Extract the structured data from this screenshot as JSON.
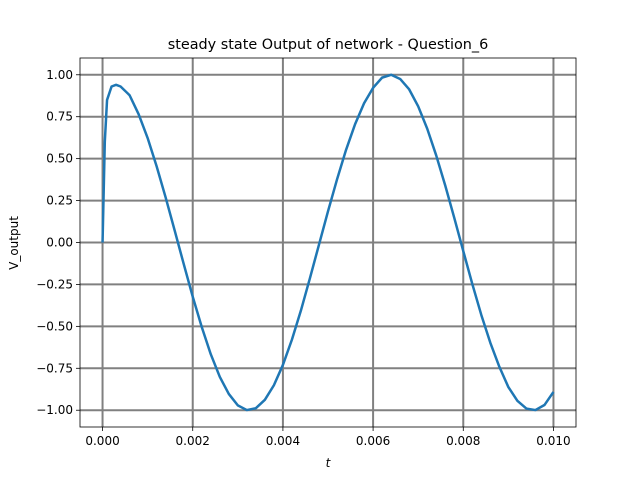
{
  "chart_data": {
    "type": "line",
    "title": "steady state Output of network - Question_6",
    "xlabel": "t",
    "ylabel": "V_output",
    "x": [
      0,
      5e-05,
      0.0001,
      0.0002,
      0.0003,
      0.0004,
      0.0006,
      0.0008,
      0.001,
      0.0012,
      0.0014,
      0.0016,
      0.0018,
      0.002,
      0.0022,
      0.0024,
      0.0026,
      0.0028,
      0.003,
      0.0032,
      0.0034,
      0.0036,
      0.0038,
      0.004,
      0.0042,
      0.0044,
      0.0046,
      0.0048,
      0.005,
      0.0052,
      0.0054,
      0.0056,
      0.0058,
      0.006,
      0.0062,
      0.0064,
      0.0066,
      0.0068,
      0.007,
      0.0072,
      0.0074,
      0.0076,
      0.0078,
      0.008,
      0.0082,
      0.0084,
      0.0086,
      0.0088,
      0.009,
      0.0092,
      0.0094,
      0.0096,
      0.0098,
      0.01
    ],
    "series": [
      {
        "color": "#1f77b4",
        "values": [
          0,
          0.6,
          0.85,
          0.93,
          0.94,
          0.93,
          0.878,
          0.765,
          0.623,
          0.454,
          0.268,
          0.071,
          -0.128,
          -0.323,
          -0.504,
          -0.666,
          -0.801,
          -0.903,
          -0.971,
          -0.999,
          -0.988,
          -0.938,
          -0.851,
          -0.73,
          -0.579,
          -0.405,
          -0.212,
          -0.013,
          0.186,
          0.376,
          0.552,
          0.705,
          0.83,
          0.922,
          0.983,
          1.0,
          0.975,
          0.913,
          0.812,
          0.679,
          0.519,
          0.34,
          0.147,
          -0.051,
          -0.247,
          -0.432,
          -0.598,
          -0.741,
          -0.862,
          -0.944,
          -0.99,
          -0.999,
          -0.969,
          -0.891
        ]
      }
    ],
    "xlim": [
      -0.0005,
      0.0105
    ],
    "ylim": [
      -1.1,
      1.1
    ],
    "xticks": [
      {
        "value": 0,
        "label": "0.000"
      },
      {
        "value": 0.002,
        "label": "0.002"
      },
      {
        "value": 0.004,
        "label": "0.004"
      },
      {
        "value": 0.006,
        "label": "0.006"
      },
      {
        "value": 0.008,
        "label": "0.008"
      },
      {
        "value": 0.01,
        "label": "0.010"
      }
    ],
    "yticks": [
      {
        "value": -1,
        "label": "−1.00"
      },
      {
        "value": -0.75,
        "label": "−0.75"
      },
      {
        "value": -0.5,
        "label": "−0.50"
      },
      {
        "value": -0.25,
        "label": "−0.25"
      },
      {
        "value": 0,
        "label": "0.00"
      },
      {
        "value": 0.25,
        "label": "0.25"
      },
      {
        "value": 0.5,
        "label": "0.50"
      },
      {
        "value": 0.75,
        "label": "0.75"
      },
      {
        "value": 1,
        "label": "1.00"
      }
    ],
    "grid": true,
    "grid_color": "#808080"
  }
}
